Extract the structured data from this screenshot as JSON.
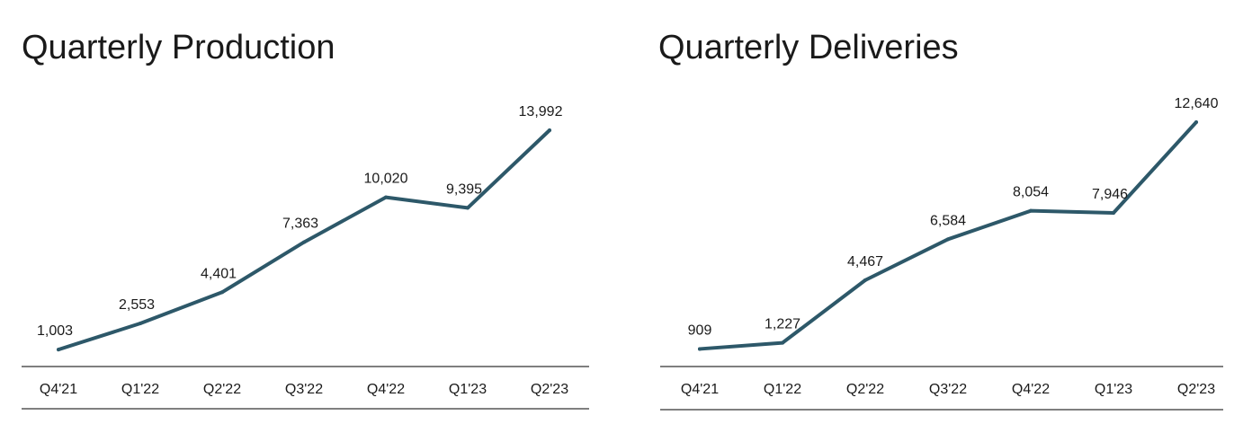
{
  "chart_data": [
    {
      "type": "line",
      "title": "Quarterly Production",
      "categories": [
        "Q4'21",
        "Q1'22",
        "Q2'22",
        "Q3'22",
        "Q4'22",
        "Q1'23",
        "Q2'23"
      ],
      "values": [
        1003,
        2553,
        4401,
        7363,
        10020,
        9395,
        13992
      ],
      "value_labels": [
        "1,003",
        "2,553",
        "4,401",
        "7,363",
        "10,020",
        "9,395",
        "13,992"
      ],
      "xlabel": "",
      "ylabel": "",
      "grid": false,
      "legend": "none",
      "line_color": "#2d5869"
    },
    {
      "type": "line",
      "title": "Quarterly Deliveries",
      "categories": [
        "Q4'21",
        "Q1'22",
        "Q2'22",
        "Q3'22",
        "Q4'22",
        "Q1'23",
        "Q2'23"
      ],
      "values": [
        909,
        1227,
        4467,
        6584,
        8054,
        7946,
        12640
      ],
      "value_labels": [
        "909",
        "1,227",
        "4,467",
        "6,584",
        "8,054",
        "7,946",
        "12,640"
      ],
      "xlabel": "",
      "ylabel": "",
      "grid": false,
      "legend": "none",
      "line_color": "#2d5869"
    }
  ]
}
